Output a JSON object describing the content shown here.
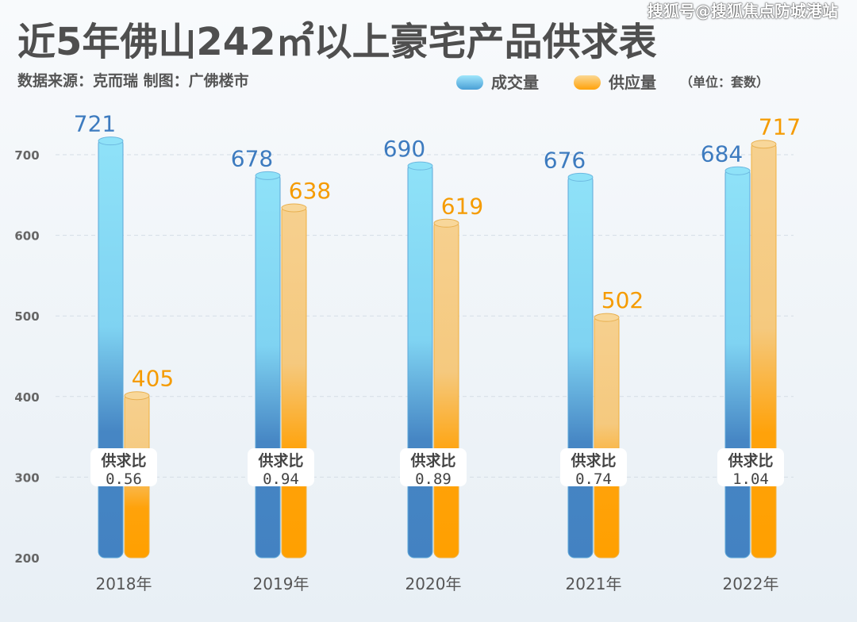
{
  "header": {
    "title": "近5年佛山242㎡以上豪宅产品供求表",
    "watermark": "搜狐号@搜狐焦点防城港站",
    "source": "数据来源：克而瑞  制图：广佛楼市",
    "unit": "（单位：套数）"
  },
  "colors": {
    "demand": "#4a86c5",
    "supply": "#ffa20a",
    "demand_label": "#3d7bbf",
    "supply_label": "#f59b00"
  },
  "chart_data": {
    "type": "bar",
    "title": "近5年佛山242㎡以上豪宅产品供求表",
    "categories": [
      "2018年",
      "2019年",
      "2020年",
      "2021年",
      "2022年"
    ],
    "series": [
      {
        "name": "成交量",
        "values": [
          721,
          678,
          690,
          676,
          684
        ]
      },
      {
        "name": "供应量",
        "values": [
          405,
          638,
          619,
          502,
          717
        ]
      }
    ],
    "ratio_label": "供求比",
    "ratios": [
      "0.56",
      "0.94",
      "0.89",
      "0.74",
      "1.04"
    ],
    "yticks": [
      200,
      300,
      400,
      500,
      600,
      700
    ],
    "ylim": [
      200,
      700
    ],
    "grid": true,
    "legend": "top-right",
    "ylabel": "套数"
  }
}
